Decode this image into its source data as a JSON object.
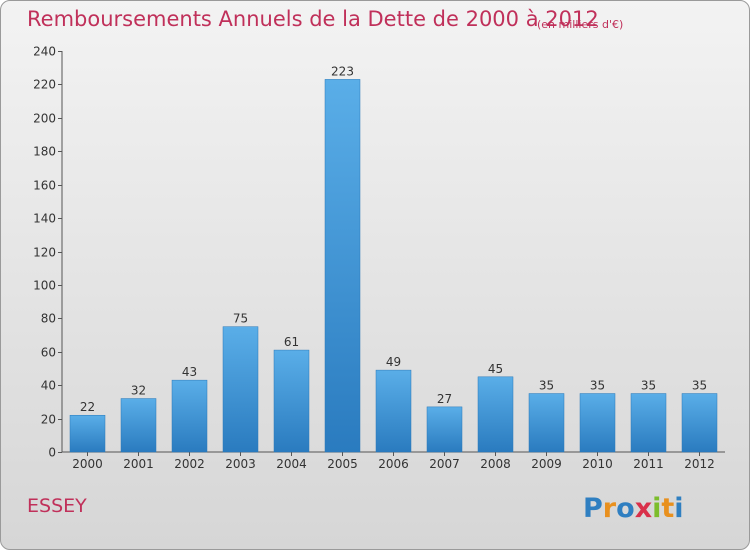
{
  "header": {
    "title": "Remboursements Annuels de la Dette de 2000 à 2012",
    "subtitle": "(en milliers d'€)"
  },
  "footer": {
    "commune": "ESSEY",
    "logo_text": "Proxiti"
  },
  "colors": {
    "title": "#c0305a",
    "bar_top": "#5aaee8",
    "bar_bottom": "#2a7bbf"
  },
  "chart_data": {
    "type": "bar",
    "categories": [
      "2000",
      "2001",
      "2002",
      "2003",
      "2004",
      "2005",
      "2006",
      "2007",
      "2008",
      "2009",
      "2010",
      "2011",
      "2012"
    ],
    "values": [
      22,
      32,
      43,
      75,
      61,
      223,
      49,
      27,
      45,
      35,
      35,
      35,
      35
    ],
    "ylim": [
      0,
      240
    ],
    "yticks": [
      0,
      20,
      40,
      60,
      80,
      100,
      120,
      140,
      160,
      180,
      200,
      220,
      240
    ],
    "grid": false,
    "legend": "none"
  }
}
